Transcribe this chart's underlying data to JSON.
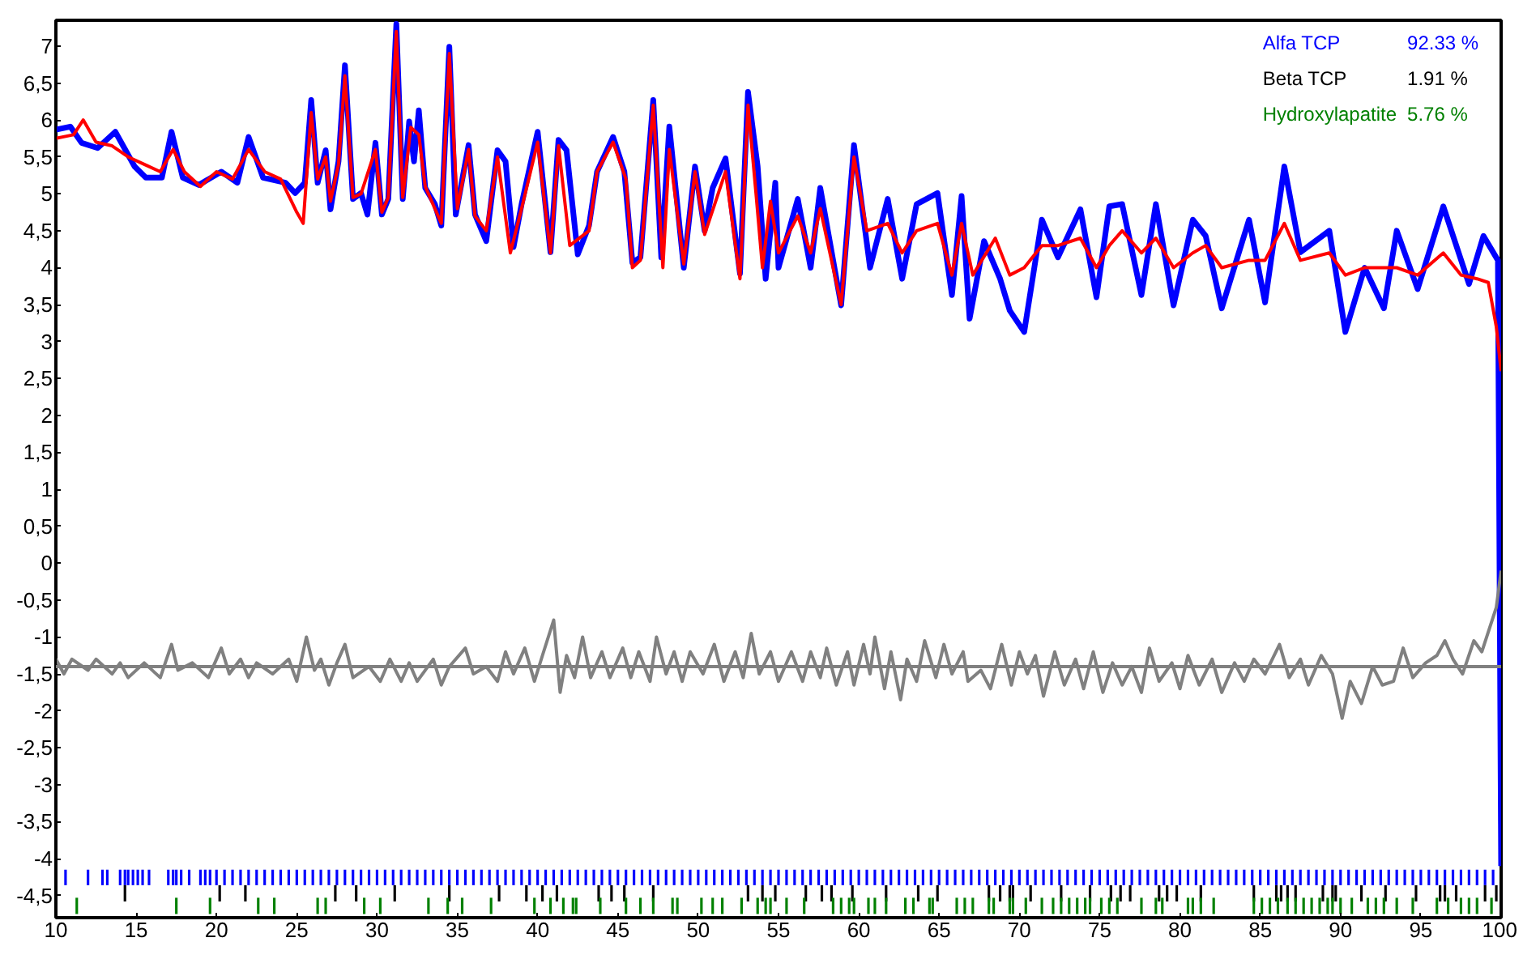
{
  "chart_data": {
    "type": "line",
    "xlim": [
      10,
      100
    ],
    "ylim": [
      -4.8,
      7.35
    ],
    "xticks": [
      10,
      15,
      20,
      25,
      30,
      35,
      40,
      45,
      50,
      55,
      60,
      65,
      70,
      75,
      80,
      85,
      90,
      95,
      100
    ],
    "yticks": [
      7,
      {
        "value": 6.5,
        "label": "6,5"
      },
      6,
      {
        "value": 5.5,
        "label": "5,5"
      },
      5,
      {
        "value": 4.5,
        "label": "4,5"
      },
      4,
      {
        "value": 3.5,
        "label": "3,5"
      },
      3,
      {
        "value": 2.5,
        "label": "2,5"
      },
      2,
      {
        "value": 1.5,
        "label": "1,5"
      },
      1,
      {
        "value": 0.5,
        "label": "0,5"
      },
      0,
      {
        "value": -0.5,
        "label": "-0,5"
      },
      -1,
      {
        "value": -1.5,
        "label": "-1,5"
      },
      -2,
      {
        "value": -2.5,
        "label": "-2,5"
      },
      -3,
      {
        "value": -3.5,
        "label": "-3,5"
      },
      -4,
      {
        "value": -4.5,
        "label": "-4,5"
      }
    ],
    "grid": false,
    "legend": "top right",
    "annotations": [
      "92.33 %",
      "1.91 %",
      "5.76 %"
    ],
    "ref_lines": [
      {
        "axis": "y",
        "value": -1.4,
        "label": null,
        "color": "#808080"
      }
    ],
    "series": [
      {
        "color": "#0000ff",
        "x": [
          10,
          10.9,
          11.6,
          12.6,
          13.7,
          14.9,
          15.6,
          16.6,
          17.2,
          17.9,
          18.9,
          20.3,
          21.3,
          22.0,
          22.9,
          24.3,
          24.9,
          25.5,
          25.9,
          26.3,
          26.8,
          27.1,
          27.6,
          28.0,
          28.5,
          29.0,
          29.4,
          29.9,
          30.3,
          30.7,
          31.2,
          31.6,
          32.0,
          32.3,
          32.6,
          33.0,
          33.6,
          34.0,
          34.5,
          34.9,
          35.7,
          36.1,
          36.8,
          37.5,
          38.0,
          38.5,
          39.0,
          40.0,
          40.8,
          41.3,
          41.8,
          42.5,
          43.2,
          43.7,
          44.7,
          45.4,
          45.9,
          46.4,
          47.2,
          47.7,
          48.2,
          49.1,
          49.8,
          50.4,
          50.9,
          51.7,
          52.6,
          53.1,
          53.7,
          54.2,
          54.8,
          55.0,
          56.2,
          57.0,
          57.6,
          58.9,
          59.7,
          60.7,
          61.8,
          62.7,
          63.6,
          64.9,
          65.8,
          66.4,
          66.9,
          67.8,
          68.8,
          69.4,
          70.3,
          71.4,
          72.4,
          73.8,
          74.8,
          75.6,
          76.4,
          77.6,
          78.5,
          79.6,
          80.8,
          81.6,
          82.6,
          84.3,
          85.3,
          86.5,
          87.5,
          89.3,
          90.3,
          91.5,
          92.7,
          93.5,
          94.8,
          96.4,
          98.0,
          98.9,
          99.8,
          100
        ],
        "values": [
          5.87,
          5.91,
          5.69,
          5.62,
          5.84,
          5.37,
          5.22,
          5.22,
          5.84,
          5.22,
          5.12,
          5.3,
          5.15,
          5.77,
          5.22,
          5.15,
          5.01,
          5.15,
          6.27,
          5.15,
          5.59,
          4.79,
          5.44,
          6.74,
          4.93,
          5.01,
          4.72,
          5.69,
          4.72,
          4.93,
          7.3,
          4.93,
          5.98,
          5.44,
          6.13,
          5.08,
          4.86,
          4.57,
          6.99,
          4.72,
          5.66,
          4.72,
          4.36,
          5.59,
          5.44,
          4.28,
          4.86,
          5.84,
          4.21,
          5.73,
          5.59,
          4.18,
          4.57,
          5.3,
          5.77,
          5.3,
          4.07,
          4.14,
          6.27,
          4.14,
          5.91,
          4.0,
          5.37,
          4.5,
          5.08,
          5.48,
          3.92,
          6.38,
          5.37,
          3.85,
          5.15,
          4.0,
          4.93,
          4.0,
          5.08,
          3.49,
          5.66,
          4.0,
          4.93,
          3.85,
          4.86,
          5.01,
          3.63,
          4.97,
          3.31,
          4.36,
          3.85,
          3.42,
          3.13,
          4.65,
          4.14,
          4.79,
          3.6,
          4.83,
          4.86,
          3.63,
          4.86,
          3.49,
          4.65,
          4.43,
          3.45,
          4.65,
          3.53,
          5.37,
          4.21,
          4.5,
          3.13,
          4.0,
          3.45,
          4.5,
          3.71,
          4.83,
          3.78,
          4.43,
          4.1,
          -4.1
        ]
      },
      {
        "color": "#ff0000",
        "x": [
          10,
          11.1,
          11.7,
          12.5,
          13.5,
          14.5,
          15.5,
          16.5,
          17.3,
          18,
          19,
          20,
          21,
          22,
          23,
          24,
          25,
          25.4,
          25.9,
          26.3,
          26.8,
          27.1,
          27.6,
          28.0,
          28.5,
          29,
          29.9,
          30.3,
          30.7,
          31.2,
          31.6,
          32.1,
          32.6,
          33,
          34,
          34.5,
          35,
          35.7,
          36.1,
          36.8,
          37.5,
          38.3,
          39,
          40,
          40.8,
          41.3,
          42,
          43.2,
          43.7,
          44.7,
          45.5,
          45.9,
          46.4,
          47.2,
          47.8,
          48.2,
          49.1,
          49.8,
          50.4,
          51.7,
          52.6,
          53.1,
          53.6,
          54.0,
          54.5,
          55,
          56.2,
          57,
          57.6,
          58.9,
          59.7,
          60.5,
          61.8,
          62.7,
          63.6,
          64.9,
          65.8,
          66.4,
          67.1,
          68.5,
          69.4,
          70.3,
          71.4,
          72.4,
          73.8,
          74.8,
          75.6,
          76.4,
          77.6,
          78.5,
          79.6,
          80.8,
          81.6,
          82.6,
          84.3,
          85.3,
          86.5,
          87.5,
          89.3,
          90.3,
          91.5,
          92.7,
          93.5,
          94.8,
          96.4,
          97.5,
          98.5,
          99.2,
          99.7,
          100
        ],
        "values": [
          5.75,
          5.8,
          6.0,
          5.7,
          5.65,
          5.5,
          5.4,
          5.3,
          5.6,
          5.3,
          5.1,
          5.3,
          5.2,
          5.6,
          5.3,
          5.2,
          4.75,
          4.6,
          6.1,
          5.2,
          5.5,
          4.9,
          5.4,
          6.6,
          4.95,
          5.0,
          5.6,
          4.75,
          4.95,
          7.2,
          4.95,
          5.9,
          5.8,
          5.1,
          4.6,
          6.9,
          4.8,
          5.6,
          4.7,
          4.5,
          5.5,
          4.2,
          4.8,
          5.7,
          4.2,
          5.65,
          4.3,
          4.5,
          5.3,
          5.7,
          5.2,
          4.0,
          4.1,
          6.2,
          4.0,
          5.6,
          4.05,
          5.3,
          4.45,
          5.3,
          3.85,
          6.2,
          5.0,
          4.0,
          4.9,
          4.2,
          4.7,
          4.2,
          4.8,
          3.5,
          5.5,
          4.5,
          4.6,
          4.2,
          4.5,
          4.6,
          3.9,
          4.6,
          3.9,
          4.4,
          3.9,
          4.0,
          4.3,
          4.3,
          4.4,
          4.0,
          4.3,
          4.5,
          4.2,
          4.4,
          4.0,
          4.2,
          4.3,
          4.0,
          4.1,
          4.1,
          4.6,
          4.1,
          4.2,
          3.9,
          4.0,
          4.0,
          4.0,
          3.9,
          4.2,
          3.9,
          3.85,
          3.8,
          3.2,
          2.6
        ]
      },
      {
        "color": "#808080",
        "x": [
          10,
          10.5,
          11,
          12,
          12.5,
          13.5,
          14,
          14.5,
          15.5,
          16.5,
          17.2,
          17.6,
          18.5,
          19.5,
          20.3,
          20.8,
          21.5,
          22,
          22.5,
          23.5,
          24.5,
          25,
          25.6,
          26.1,
          26.5,
          27,
          27.5,
          28,
          28.5,
          29.5,
          30.2,
          30.8,
          31.5,
          32,
          32.5,
          33.5,
          34,
          34.5,
          35.5,
          36,
          36.8,
          37.5,
          38,
          38.5,
          39.2,
          39.8,
          40.3,
          41,
          41.4,
          41.8,
          42.3,
          42.8,
          43.3,
          44,
          44.5,
          45.3,
          45.8,
          46.3,
          47,
          47.4,
          48,
          48.5,
          49,
          49.5,
          50.3,
          51,
          51.6,
          52.3,
          52.8,
          53.3,
          53.8,
          54.5,
          55,
          55.8,
          56.5,
          57,
          57.6,
          58,
          58.6,
          59.3,
          59.7,
          60.3,
          60.7,
          61,
          61.6,
          62,
          62.6,
          63,
          63.6,
          64.1,
          64.8,
          65.3,
          65.8,
          66.5,
          66.8,
          67.6,
          68.2,
          68.9,
          69.5,
          70,
          70.5,
          71,
          71.5,
          72.2,
          72.8,
          73.5,
          74,
          74.6,
          75.2,
          75.8,
          76.4,
          77,
          77.6,
          78.1,
          78.7,
          79.5,
          80,
          80.5,
          81.2,
          82,
          82.6,
          83.4,
          84,
          84.6,
          85.3,
          86.2,
          86.8,
          87.5,
          88,
          88.8,
          89.5,
          90.1,
          90.6,
          91.3,
          92,
          92.6,
          93.3,
          93.9,
          94.5,
          95.3,
          96,
          96.5,
          97,
          97.6,
          98.3,
          98.8,
          99.4,
          99.7,
          100
        ],
        "values": [
          -1.3,
          -1.5,
          -1.3,
          -1.45,
          -1.3,
          -1.5,
          -1.35,
          -1.55,
          -1.35,
          -1.55,
          -1.1,
          -1.45,
          -1.35,
          -1.55,
          -1.15,
          -1.5,
          -1.3,
          -1.55,
          -1.35,
          -1.5,
          -1.3,
          -1.6,
          -1.0,
          -1.45,
          -1.3,
          -1.65,
          -1.35,
          -1.1,
          -1.55,
          -1.4,
          -1.6,
          -1.3,
          -1.6,
          -1.35,
          -1.6,
          -1.3,
          -1.65,
          -1.4,
          -1.15,
          -1.5,
          -1.4,
          -1.6,
          -1.2,
          -1.5,
          -1.15,
          -1.6,
          -1.25,
          -0.77,
          -1.75,
          -1.25,
          -1.55,
          -1.0,
          -1.55,
          -1.2,
          -1.55,
          -1.15,
          -1.55,
          -1.2,
          -1.6,
          -1.0,
          -1.5,
          -1.2,
          -1.6,
          -1.2,
          -1.5,
          -1.1,
          -1.6,
          -1.2,
          -1.55,
          -0.95,
          -1.5,
          -1.2,
          -1.6,
          -1.2,
          -1.6,
          -1.2,
          -1.55,
          -1.15,
          -1.65,
          -1.2,
          -1.65,
          -1.1,
          -1.5,
          -1.0,
          -1.7,
          -1.2,
          -1.85,
          -1.3,
          -1.6,
          -1.05,
          -1.55,
          -1.1,
          -1.5,
          -1.2,
          -1.6,
          -1.45,
          -1.7,
          -1.1,
          -1.65,
          -1.2,
          -1.5,
          -1.25,
          -1.8,
          -1.2,
          -1.65,
          -1.3,
          -1.7,
          -1.2,
          -1.75,
          -1.35,
          -1.65,
          -1.4,
          -1.75,
          -1.15,
          -1.6,
          -1.35,
          -1.7,
          -1.25,
          -1.65,
          -1.3,
          -1.75,
          -1.35,
          -1.6,
          -1.3,
          -1.5,
          -1.1,
          -1.55,
          -1.3,
          -1.65,
          -1.25,
          -1.5,
          -2.1,
          -1.6,
          -1.9,
          -1.4,
          -1.65,
          -1.6,
          -1.15,
          -1.55,
          -1.35,
          -1.25,
          -1.05,
          -1.3,
          -1.5,
          -1.05,
          -1.2,
          -0.8,
          -0.6,
          -0.1
        ]
      },
      {
        "type": "bar",
        "name": "Alfa TCP",
        "color": "#0000ff",
        "x": [
          10.6,
          12.0,
          12.9,
          13.2,
          14.0,
          14.3,
          14.5,
          14.8,
          15.1,
          15.4,
          15.8,
          17.0,
          17.3,
          17.5,
          17.8,
          18.3,
          19.0,
          19.3,
          19.6,
          20.0,
          20.5,
          21,
          21.5,
          22,
          22.5,
          23,
          23.5,
          24,
          24.5,
          25,
          25.5,
          26,
          26.5,
          27,
          27.5,
          28,
          28.5,
          29,
          29.5,
          30,
          30.5,
          31,
          31.5,
          32,
          32.5,
          33,
          33.5,
          34,
          34.5,
          35,
          35.5,
          36,
          36.5,
          37,
          37.5,
          38,
          38.5,
          39,
          39.5,
          40,
          40.5,
          41,
          41.5,
          42,
          42.5,
          43,
          43.5,
          44,
          44.5,
          45,
          45.5,
          46,
          46.5,
          47,
          47.5,
          48,
          48.5,
          49,
          49.5,
          50,
          50.5,
          51,
          51.5,
          52,
          52.5,
          53,
          53.5,
          54,
          54.5,
          55,
          55.5,
          56,
          56.5,
          57,
          57.5,
          58,
          58.5,
          59,
          59.5,
          60,
          60.5,
          61,
          61.5,
          62,
          62.5,
          63,
          63.5,
          64,
          64.5,
          65,
          65.5,
          66,
          66.5,
          67,
          67.5,
          68,
          68.5,
          69,
          69.5,
          70,
          70.5,
          71,
          71.5,
          72,
          72.5,
          73,
          73.5,
          74,
          74.5,
          75,
          75.5,
          76,
          76.5,
          77,
          77.5,
          78,
          78.5,
          79,
          79.5,
          80,
          80.5,
          81,
          81.5,
          82,
          82.5,
          83,
          83.5,
          84,
          84.5,
          85,
          85.5,
          86,
          86.5,
          87,
          87.5,
          88,
          88.5,
          89,
          89.5,
          90,
          90.5,
          91,
          91.5,
          92,
          92.5,
          93,
          93.5,
          94,
          94.5,
          95,
          95.5,
          96,
          96.5,
          97,
          97.5,
          98,
          98.5,
          99,
          99.5
        ],
        "values": [
          0.21,
          0.21,
          0.21,
          0.21,
          0.21,
          0.21,
          0.21,
          0.21,
          0.21,
          0.21,
          0.21,
          0.21,
          0.21,
          0.21,
          0.21,
          0.21,
          0.21,
          0.21,
          0.21,
          0.21,
          0.21,
          0.21,
          0.21,
          0.21,
          0.21,
          0.21,
          0.21,
          0.21,
          0.21,
          0.21,
          0.21,
          0.21,
          0.21,
          0.21,
          0.21,
          0.21,
          0.21,
          0.21,
          0.21,
          0.21,
          0.21,
          0.21,
          0.21,
          0.21,
          0.21,
          0.21,
          0.21,
          0.21,
          0.21,
          0.21,
          0.21,
          0.21,
          0.21,
          0.21,
          0.21,
          0.21,
          0.21,
          0.21,
          0.21,
          0.21,
          0.21,
          0.21,
          0.21,
          0.21,
          0.21,
          0.21,
          0.21,
          0.21,
          0.21,
          0.21,
          0.21,
          0.21,
          0.21,
          0.21,
          0.21,
          0.21,
          0.21,
          0.21,
          0.21,
          0.21,
          0.21,
          0.21,
          0.21,
          0.21,
          0.21,
          0.21,
          0.21,
          0.21,
          0.21,
          0.21,
          0.21,
          0.21,
          0.21,
          0.21,
          0.21,
          0.21,
          0.21,
          0.21,
          0.21,
          0.21,
          0.21,
          0.21,
          0.21,
          0.21,
          0.21,
          0.21,
          0.21,
          0.21,
          0.21,
          0.21,
          0.21,
          0.21,
          0.21,
          0.21,
          0.21,
          0.21,
          0.21,
          0.21,
          0.21,
          0.21,
          0.21,
          0.21,
          0.21,
          0.21,
          0.21,
          0.21,
          0.21,
          0.21,
          0.21,
          0.21,
          0.21,
          0.21,
          0.21,
          0.21,
          0.21,
          0.21,
          0.21,
          0.21,
          0.21,
          0.21,
          0.21,
          0.21,
          0.21,
          0.21,
          0.21,
          0.21,
          0.21,
          0.21,
          0.21,
          0.21,
          0.21,
          0.21,
          0.21,
          0.21,
          0.21,
          0.21,
          0.21,
          0.21,
          0.21,
          0.21,
          0.21,
          0.21,
          0.21,
          0.21,
          0.21,
          0.21,
          0.21,
          0.21,
          0.21,
          0.21,
          0.21,
          0.21,
          0.21,
          0.21,
          0.21,
          0.21,
          0.21,
          0.21,
          0.21
        ],
        "base": [
          -4.36,
          -4.36,
          -4.36,
          -4.36,
          -4.36,
          -4.36,
          -4.36,
          -4.36,
          -4.36,
          -4.36,
          -4.36,
          -4.36,
          -4.36,
          -4.36,
          -4.36,
          -4.36,
          -4.36,
          -4.36,
          -4.36,
          -4.36,
          -4.36,
          -4.36,
          -4.36,
          -4.36,
          -4.36,
          -4.36,
          -4.36,
          -4.36,
          -4.36,
          -4.36,
          -4.36,
          -4.36,
          -4.36,
          -4.36,
          -4.36,
          -4.36,
          -4.36,
          -4.36,
          -4.36,
          -4.36,
          -4.36,
          -4.36,
          -4.36,
          -4.36,
          -4.36,
          -4.36,
          -4.36,
          -4.36,
          -4.36,
          -4.36,
          -4.36,
          -4.36,
          -4.36,
          -4.36,
          -4.36,
          -4.36,
          -4.36,
          -4.36,
          -4.36,
          -4.36,
          -4.36,
          -4.36,
          -4.36,
          -4.36,
          -4.36,
          -4.36,
          -4.36,
          -4.36,
          -4.36,
          -4.36,
          -4.36,
          -4.36,
          -4.36,
          -4.36,
          -4.36,
          -4.36,
          -4.36,
          -4.36,
          -4.36,
          -4.36,
          -4.36,
          -4.36,
          -4.36,
          -4.36,
          -4.36,
          -4.36,
          -4.36,
          -4.36,
          -4.36,
          -4.36,
          -4.36,
          -4.36,
          -4.36,
          -4.36,
          -4.36,
          -4.36,
          -4.36,
          -4.36,
          -4.36,
          -4.36,
          -4.36,
          -4.36,
          -4.36,
          -4.36,
          -4.36,
          -4.36,
          -4.36,
          -4.36,
          -4.36,
          -4.36,
          -4.36,
          -4.36,
          -4.36,
          -4.36,
          -4.36,
          -4.36,
          -4.36,
          -4.36,
          -4.36,
          -4.36,
          -4.36,
          -4.36,
          -4.36,
          -4.36,
          -4.36,
          -4.36,
          -4.36,
          -4.36,
          -4.36,
          -4.36,
          -4.36,
          -4.36,
          -4.36,
          -4.36,
          -4.36,
          -4.36,
          -4.36,
          -4.36,
          -4.36,
          -4.36,
          -4.36,
          -4.36,
          -4.36,
          -4.36,
          -4.36,
          -4.36,
          -4.36,
          -4.36,
          -4.36,
          -4.36,
          -4.36,
          -4.36,
          -4.36,
          -4.36,
          -4.36,
          -4.36,
          -4.36,
          -4.36,
          -4.36,
          -4.36,
          -4.36,
          -4.36,
          -4.36,
          -4.36,
          -4.36,
          -4.36,
          -4.36,
          -4.36,
          -4.36,
          -4.36,
          -4.36,
          -4.36,
          -4.36,
          -4.36,
          -4.36,
          -4.36,
          -4.36,
          -4.36,
          -4.36
        ]
      },
      {
        "type": "bar",
        "name": "Beta TCP",
        "color": "#000000",
        "x": [
          14.3,
          20.2,
          21.8,
          27.4,
          28.7,
          31.1,
          34.5,
          37.6,
          39.3,
          40.3,
          41.2,
          43.8,
          44.6,
          45.4,
          47.2,
          53.1,
          54.0,
          54.8,
          56.7,
          57.7,
          58.3,
          59.6,
          61.7,
          63.7,
          64.9,
          68.1,
          68.8,
          69.4,
          69.6,
          70.7,
          72.6,
          74.4,
          75.7,
          76.3,
          76.9,
          78.7,
          79.2,
          79.8,
          81.3,
          84.6,
          86.0,
          86.3,
          86.7,
          87.2,
          88.9,
          89.5,
          89.7,
          91.3,
          92.8,
          94.7,
          96.2,
          96.5,
          97.2,
          99.0,
          99.7
        ],
        "values": [
          0.22,
          0.22,
          0.22,
          0.22,
          0.22,
          0.22,
          0.22,
          0.22,
          0.22,
          0.22,
          0.22,
          0.22,
          0.22,
          0.22,
          0.22,
          0.22,
          0.22,
          0.22,
          0.22,
          0.22,
          0.22,
          0.22,
          0.22,
          0.22,
          0.22,
          0.22,
          0.22,
          0.22,
          0.22,
          0.22,
          0.22,
          0.22,
          0.22,
          0.22,
          0.22,
          0.22,
          0.22,
          0.22,
          0.22,
          0.22,
          0.22,
          0.22,
          0.22,
          0.22,
          0.22,
          0.22,
          0.22,
          0.22,
          0.22,
          0.22,
          0.22,
          0.22,
          0.22,
          0.22,
          0.22
        ],
        "base": [
          -4.58,
          -4.58,
          -4.58,
          -4.58,
          -4.58,
          -4.58,
          -4.58,
          -4.58,
          -4.58,
          -4.58,
          -4.58,
          -4.58,
          -4.58,
          -4.58,
          -4.58,
          -4.58,
          -4.58,
          -4.58,
          -4.58,
          -4.58,
          -4.58,
          -4.58,
          -4.58,
          -4.58,
          -4.58,
          -4.58,
          -4.58,
          -4.58,
          -4.58,
          -4.58,
          -4.58,
          -4.58,
          -4.58,
          -4.58,
          -4.58,
          -4.58,
          -4.58,
          -4.58,
          -4.58,
          -4.58,
          -4.58,
          -4.58,
          -4.58,
          -4.58,
          -4.58,
          -4.58,
          -4.58,
          -4.58,
          -4.58,
          -4.58,
          -4.58,
          -4.58,
          -4.58,
          -4.58,
          -4.58
        ]
      },
      {
        "type": "bar",
        "name": "Hydroxylapatite",
        "color": "#008000",
        "x": [
          11.3,
          17.5,
          19.6,
          22.6,
          23.6,
          26.3,
          26.8,
          29.2,
          30.2,
          33.2,
          34.4,
          35.3,
          37.1,
          39.8,
          40.8,
          41.6,
          42.2,
          42.4,
          43.9,
          45.5,
          46.4,
          47.2,
          48.4,
          48.7,
          50.2,
          50.9,
          51.5,
          52.7,
          53.7,
          54.2,
          54.5,
          55.5,
          56.6,
          58.4,
          58.9,
          59.4,
          59.7,
          60.6,
          61.0,
          61.7,
          62.9,
          63.4,
          64.4,
          64.6,
          66.1,
          66.6,
          67.1,
          68.1,
          68.4,
          69.4,
          69.6,
          70.4,
          71.4,
          72.1,
          72.6,
          73.1,
          73.6,
          74.1,
          74.4,
          75.1,
          75.6,
          76.1,
          77.6,
          78.5,
          78.9,
          80.5,
          80.8,
          81.3,
          82.1,
          84.6,
          85.1,
          85.6,
          86.1,
          86.7,
          87.2,
          87.7,
          88.2,
          88.7,
          89.2,
          89.5,
          90.0,
          90.7,
          91.7,
          92.2,
          92.7,
          93.5,
          94.5,
          96.0,
          96.7,
          97.5,
          98.0,
          98.5,
          99.4
        ],
        "values": [
          0.22,
          0.22,
          0.22,
          0.22,
          0.22,
          0.22,
          0.22,
          0.22,
          0.22,
          0.22,
          0.22,
          0.22,
          0.22,
          0.22,
          0.22,
          0.22,
          0.22,
          0.22,
          0.22,
          0.22,
          0.22,
          0.22,
          0.22,
          0.22,
          0.22,
          0.22,
          0.22,
          0.22,
          0.22,
          0.22,
          0.22,
          0.22,
          0.22,
          0.22,
          0.22,
          0.22,
          0.22,
          0.22,
          0.22,
          0.22,
          0.22,
          0.22,
          0.22,
          0.22,
          0.22,
          0.22,
          0.22,
          0.22,
          0.22,
          0.22,
          0.22,
          0.22,
          0.22,
          0.22,
          0.22,
          0.22,
          0.22,
          0.22,
          0.22,
          0.22,
          0.22,
          0.22,
          0.22,
          0.22,
          0.22,
          0.22,
          0.22,
          0.22,
          0.22,
          0.22,
          0.22,
          0.22,
          0.22,
          0.22,
          0.22,
          0.22,
          0.22,
          0.22,
          0.22,
          0.22,
          0.22,
          0.22,
          0.22,
          0.22,
          0.22,
          0.22,
          0.22,
          0.22,
          0.22,
          0.22,
          0.22,
          0.22,
          0.22
        ],
        "base": [
          -4.75,
          -4.75,
          -4.75,
          -4.75,
          -4.75,
          -4.75,
          -4.75,
          -4.75,
          -4.75,
          -4.75,
          -4.75,
          -4.75,
          -4.75,
          -4.75,
          -4.75,
          -4.75,
          -4.75,
          -4.75,
          -4.75,
          -4.75,
          -4.75,
          -4.75,
          -4.75,
          -4.75,
          -4.75,
          -4.75,
          -4.75,
          -4.75,
          -4.75,
          -4.75,
          -4.75,
          -4.75,
          -4.75,
          -4.75,
          -4.75,
          -4.75,
          -4.75,
          -4.75,
          -4.75,
          -4.75,
          -4.75,
          -4.75,
          -4.75,
          -4.75,
          -4.75,
          -4.75,
          -4.75,
          -4.75,
          -4.75,
          -4.75,
          -4.75,
          -4.75,
          -4.75,
          -4.75,
          -4.75,
          -4.75,
          -4.75,
          -4.75,
          -4.75,
          -4.75,
          -4.75,
          -4.75,
          -4.75,
          -4.75,
          -4.75,
          -4.75,
          -4.75,
          -4.75,
          -4.75,
          -4.75,
          -4.75,
          -4.75,
          -4.75,
          -4.75,
          -4.75,
          -4.75,
          -4.75,
          -4.75,
          -4.75,
          -4.75,
          -4.75,
          -4.75,
          -4.75,
          -4.75,
          -4.75,
          -4.75,
          -4.75,
          -4.75,
          -4.75,
          -4.75,
          -4.75,
          -4.75,
          -4.75
        ]
      }
    ]
  }
}
